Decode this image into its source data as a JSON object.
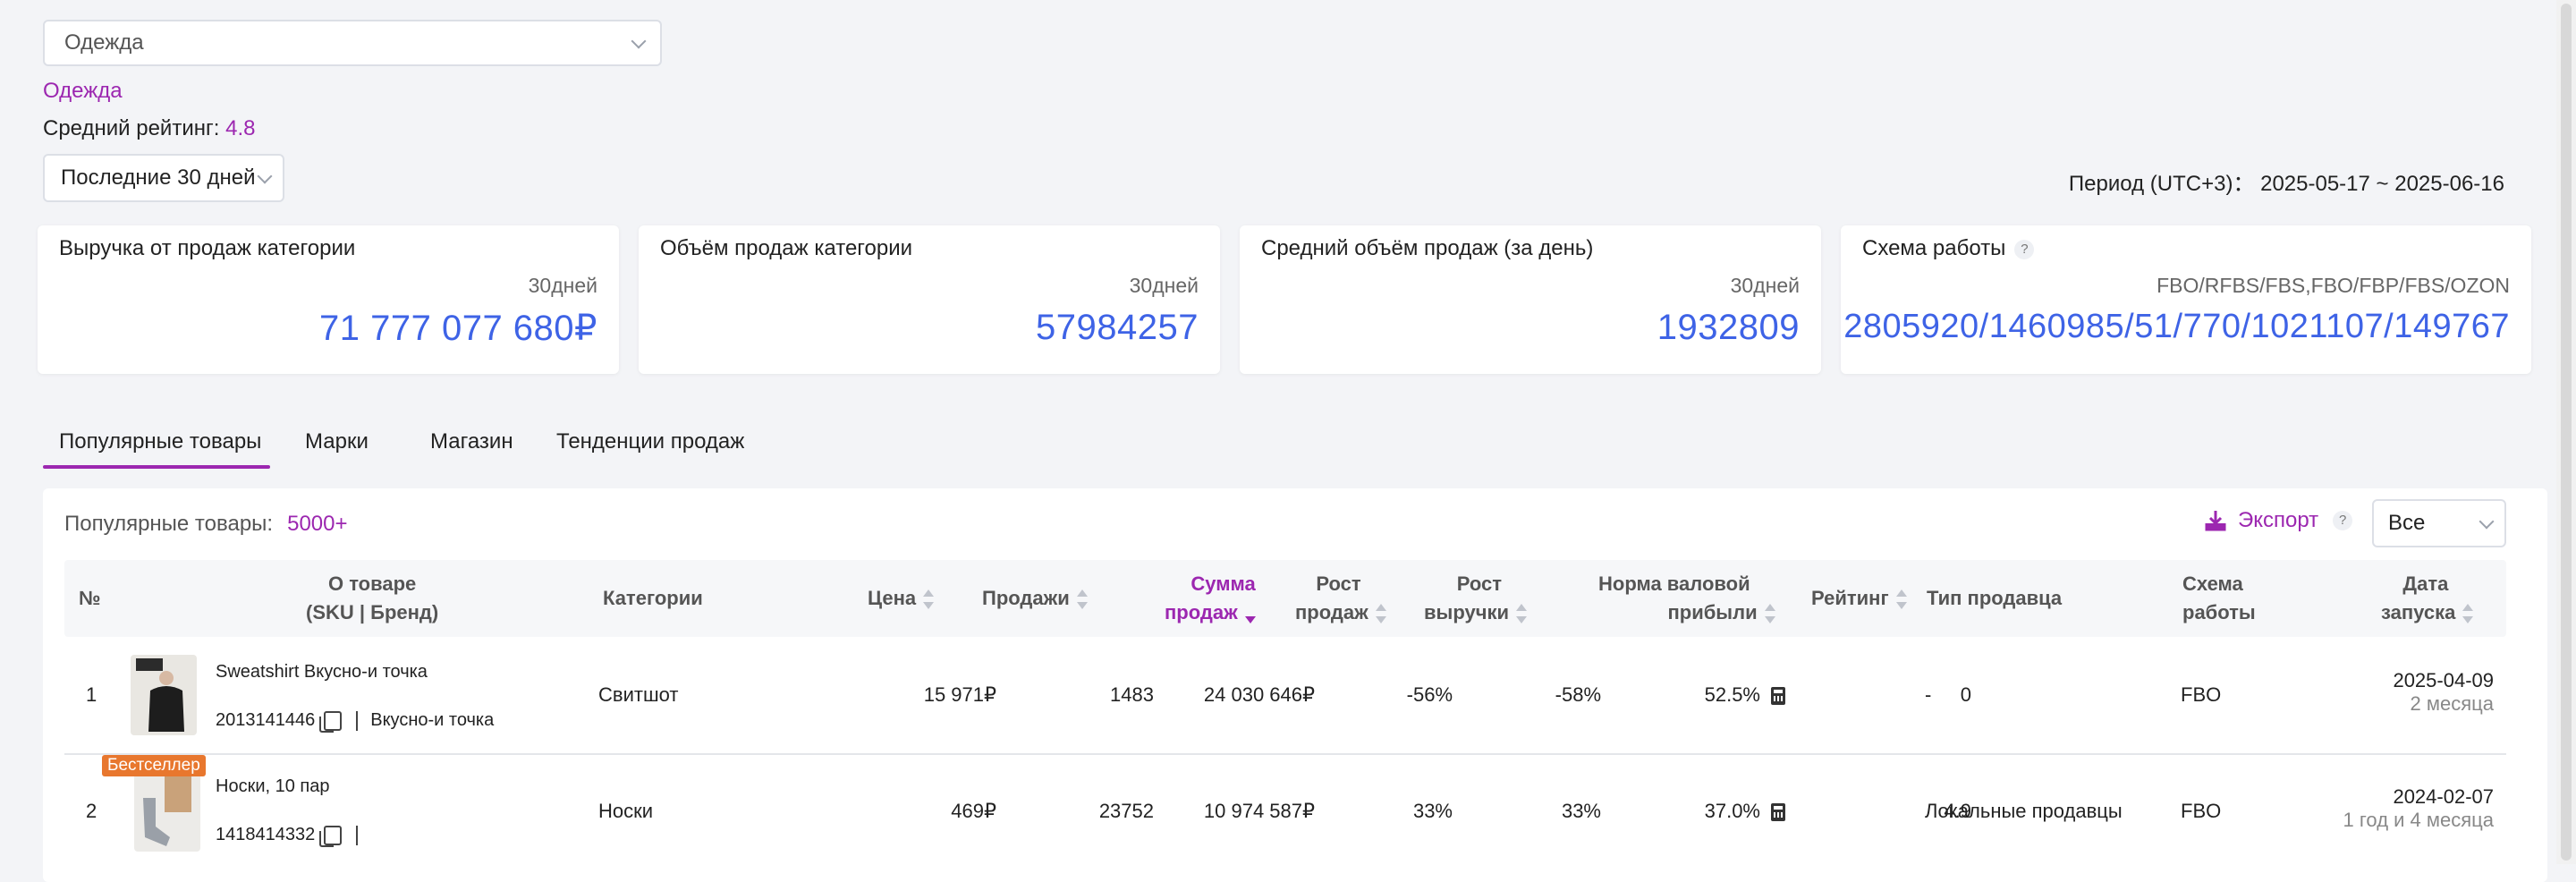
{
  "category_select": {
    "value": "Одежда"
  },
  "category_link": "Одежда",
  "avg_rating": {
    "label": "Средний рейтинг:",
    "value": "4.8"
  },
  "period_select": {
    "value": "Последние 30 дней"
  },
  "period_text": "Период (UTC+3)：  2025-05-17 ~ 2025-06-16",
  "cards": [
    {
      "title": "Выручка от продаж категории",
      "sub": "30дней",
      "value": "71 777 077 680₽"
    },
    {
      "title": "Объём продаж категории",
      "sub": "30дней",
      "value": "57984257"
    },
    {
      "title": "Средний объём продаж (за день)",
      "sub": "30дней",
      "value": "1932809"
    },
    {
      "title": "Схема работы",
      "sub": "FBO/RFBS/FBS,FBO/FBP/FBS/OZON",
      "value": "2805920/1460985/51/770/1021107/149767"
    }
  ],
  "tabs": [
    "Популярные товары",
    "Марки",
    "Магазин",
    "Тенденции продаж"
  ],
  "popular": {
    "label": "Популярные товары:",
    "count": "5000+"
  },
  "export_label": "Экспорт",
  "filter_select": {
    "value": "Все"
  },
  "colors": {
    "accent": "#9c27b0",
    "value_blue": "#3e63e6",
    "badge": "#e8772e"
  },
  "table": {
    "headers": {
      "num": "№",
      "about_1": "О товаре",
      "about_2": "(SKU | Бренд)",
      "category": "Категории",
      "price": "Цена",
      "sales": "Продажи",
      "sum_1": "Сумма",
      "sum_2": "продаж",
      "growth_sales_1": "Рост",
      "growth_sales_2": "продаж",
      "growth_rev_1": "Рост",
      "growth_rev_2": "выручки",
      "margin_1": "Норма валовой",
      "margin_2": "прибыли",
      "rating": "Рейтинг",
      "seller_type": "Тип продавца",
      "scheme_1": "Схема",
      "scheme_2": "работы",
      "date_1": "Дата",
      "date_2": "запуска"
    },
    "rows": [
      {
        "num": "1",
        "name": "Sweatshirt Вкусно-и точка",
        "sku": "2013141446",
        "brand": "Вкусно-и точка",
        "badge": "",
        "category": "Свитшот",
        "price": "15 971₽",
        "sales": "1483",
        "sum": "24 030 646₽",
        "growth_sales": "-56%",
        "growth_rev": "-58%",
        "margin": "52.5%",
        "rating": "0",
        "seller_type": "-",
        "scheme": "FBO",
        "date": "2025-04-09",
        "age": "2 месяца"
      },
      {
        "num": "2",
        "name": "Носки, 10 пар",
        "sku": "1418414332",
        "brand": "",
        "badge": "Бестселлер",
        "category": "Носки",
        "price": "469₽",
        "sales": "23752",
        "sum": "10 974 587₽",
        "growth_sales": "33%",
        "growth_rev": "33%",
        "margin": "37.0%",
        "rating": "4.9",
        "seller_type": "Локальные продавцы",
        "scheme": "FBO",
        "date": "2024-02-07",
        "age": "1 год и 4 месяца"
      }
    ]
  }
}
